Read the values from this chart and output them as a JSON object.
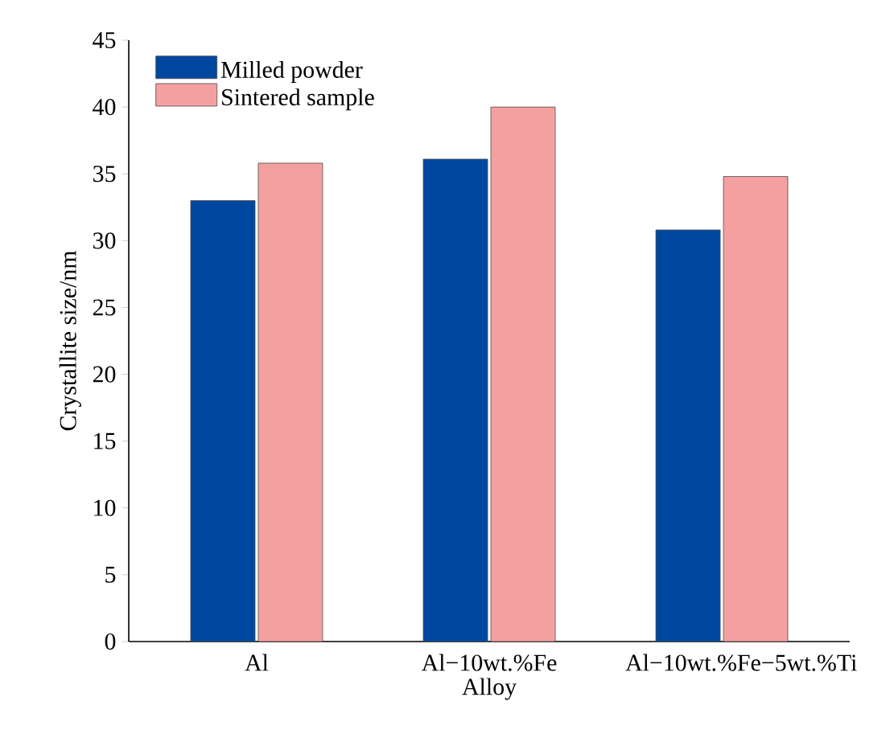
{
  "chart_data": {
    "type": "bar",
    "ylabel": "Crystallite size/nm",
    "categories": [
      "Al",
      "Al−10wt.%Fe Alloy",
      "Al−10wt.%Fe−5wt.%Ti"
    ],
    "series": [
      {
        "name": "Milled powder",
        "color": "#0047a0",
        "values": [
          33,
          36.1,
          30.8
        ]
      },
      {
        "name": "Sintered sample",
        "color": "#f4a0a0",
        "values": [
          35.8,
          40,
          34.8
        ]
      }
    ],
    "ylim": [
      0,
      45
    ],
    "yticks": [
      0,
      5,
      10,
      15,
      20,
      25,
      30,
      35,
      40,
      45
    ],
    "grid": false,
    "legend": "top left"
  }
}
